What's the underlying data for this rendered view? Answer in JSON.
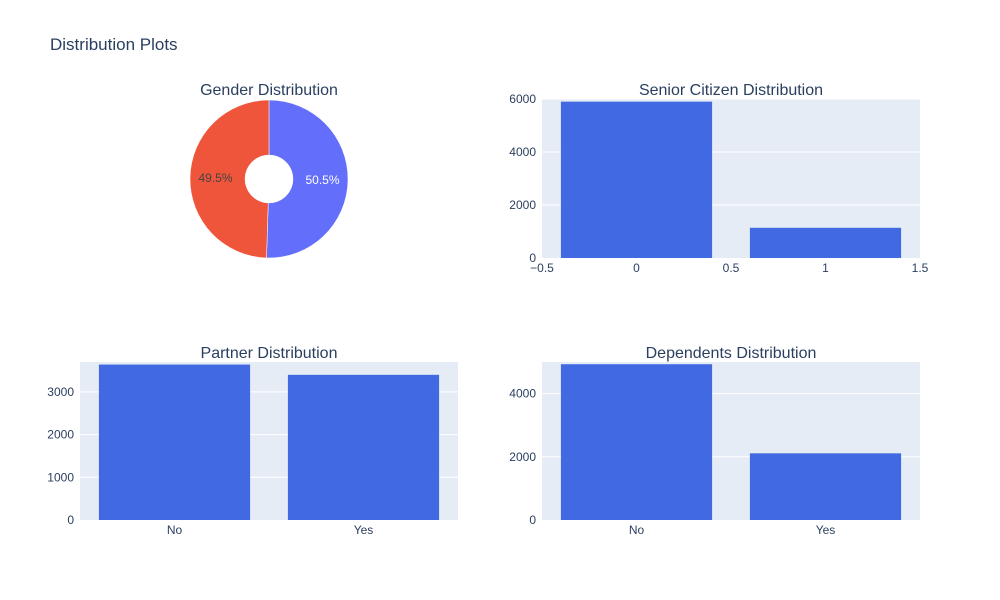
{
  "figure": {
    "title": "Distribution Plots"
  },
  "colors": {
    "bar": "#4169e1",
    "plot_bg": "#e5ecf6",
    "grid": "#ffffff",
    "text": "#2a3f5f"
  },
  "chart_data": [
    {
      "type": "pie",
      "title": "Gender Distribution",
      "hole": true,
      "slices": [
        {
          "label": "50.5%",
          "value": 50.5,
          "color": "#636efa",
          "text_color": "#ffffff"
        },
        {
          "label": "49.5%",
          "value": 49.5,
          "color": "#ef553b",
          "text_color": "#444444"
        }
      ]
    },
    {
      "type": "bar",
      "title": "Senior Citizen Distribution",
      "x": [
        0,
        1
      ],
      "values": [
        5900,
        1140
      ],
      "xlim": [
        -0.5,
        1.5
      ],
      "ylim": [
        0,
        6000
      ],
      "xticks": [
        -0.5,
        0,
        0.5,
        1,
        1.5
      ],
      "xtick_labels": [
        "−0.5",
        "0",
        "0.5",
        "1",
        "1.5"
      ],
      "yticks": [
        0,
        2000,
        4000,
        6000
      ],
      "ytick_labels": [
        "0",
        "2000",
        "4000",
        "6000"
      ],
      "grid": true
    },
    {
      "type": "bar",
      "title": "Partner Distribution",
      "categories": [
        "No",
        "Yes"
      ],
      "values": [
        3640,
        3400
      ],
      "ylim": [
        0,
        3700
      ],
      "yticks": [
        0,
        1000,
        2000,
        3000
      ],
      "ytick_labels": [
        "0",
        "1000",
        "2000",
        "3000"
      ],
      "grid": true
    },
    {
      "type": "bar",
      "title": "Dependents Distribution",
      "categories": [
        "No",
        "Yes"
      ],
      "values": [
        4930,
        2110
      ],
      "ylim": [
        0,
        5000
      ],
      "yticks": [
        0,
        2000,
        4000
      ],
      "ytick_labels": [
        "0",
        "2000",
        "4000"
      ],
      "grid": true
    }
  ]
}
